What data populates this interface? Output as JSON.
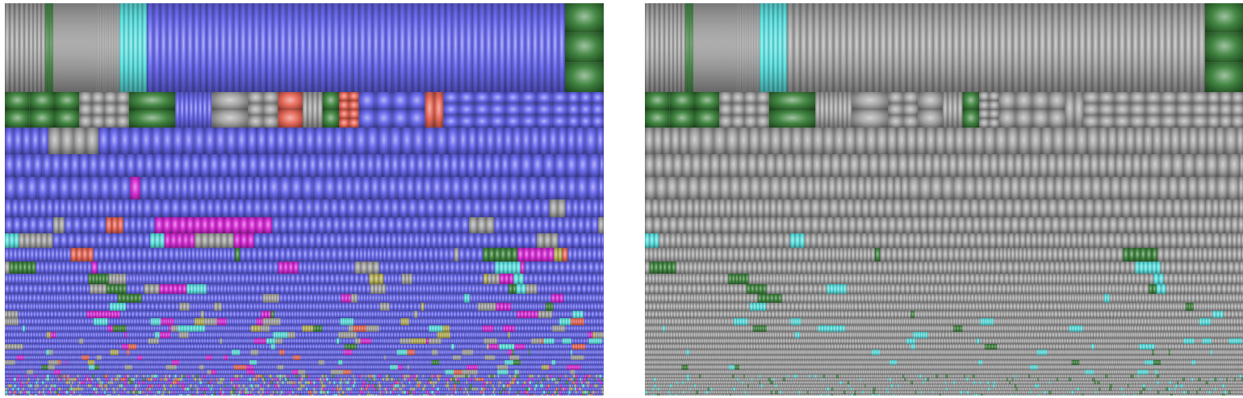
{
  "colors": {
    "background": "#ffffff",
    "blue": "#5a5aea",
    "gray": "#9a9a9a",
    "green": "#2f7a2f",
    "cyan": "#4fdcdc",
    "magenta": "#d21ad2",
    "red": "#e45a4a",
    "olive": "#b0a84a",
    "frame": "#c8c8c8"
  },
  "panels": [
    {
      "name": "treemap-colored",
      "highlight_mode": "all",
      "description": ""
    },
    {
      "name": "treemap-filtered",
      "highlight_mode": "green-cyan-only",
      "description": ""
    }
  ]
}
